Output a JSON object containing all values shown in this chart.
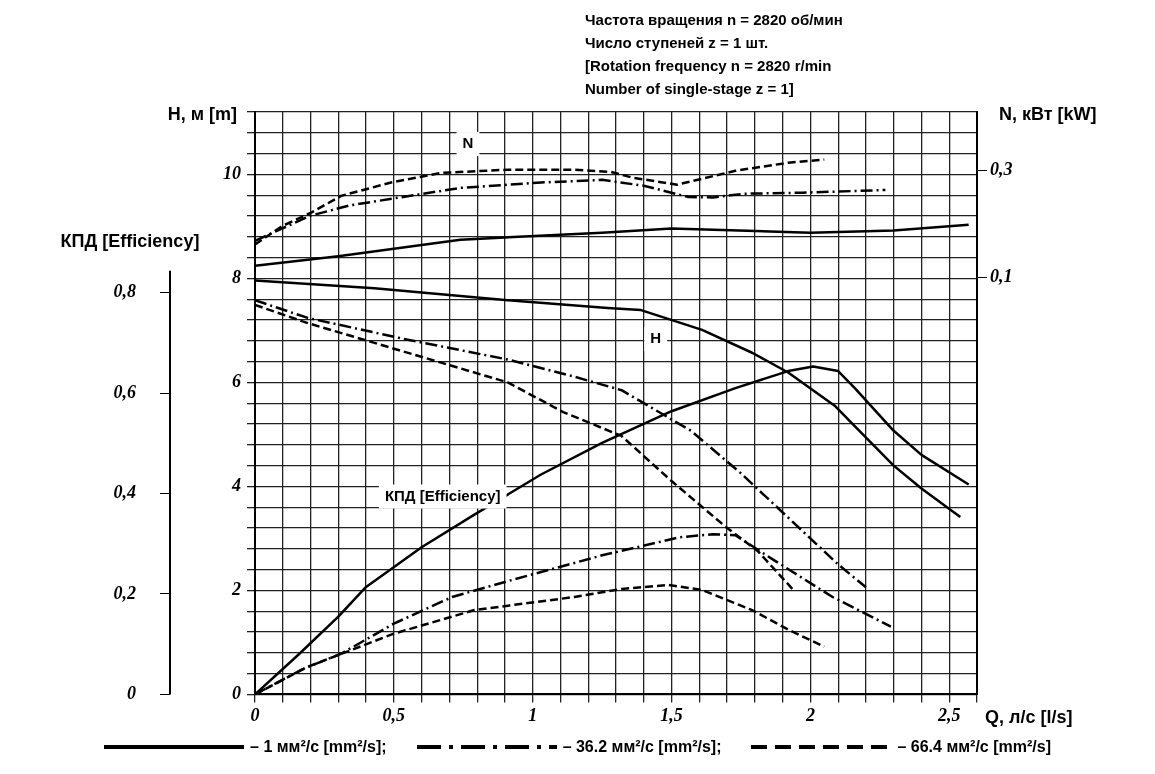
{
  "chart_data": {
    "type": "line",
    "xlabel": "Q, л/с [l/s]",
    "ylabel": "H, м [m]",
    "y2label": "N, кВт [kW]",
    "y3label": "КПД [Efficiency]",
    "xlim": [
      0,
      2.6
    ],
    "xticks": [
      0,
      {
        "value": 0.1,
        "label": null
      },
      {
        "value": 0.2,
        "label": null
      },
      {
        "value": 0.3,
        "label": null
      },
      {
        "value": 0.4,
        "label": null
      },
      {
        "value": 0.5,
        "label": "0,5"
      },
      {
        "value": 0.6,
        "label": null
      },
      {
        "value": 0.7,
        "label": null
      },
      {
        "value": 0.8,
        "label": null
      },
      {
        "value": 0.9,
        "label": null
      },
      1,
      {
        "value": 1.1,
        "label": null
      },
      {
        "value": 1.2,
        "label": null
      },
      {
        "value": 1.3,
        "label": null
      },
      {
        "value": 1.4,
        "label": null
      },
      {
        "value": 1.5,
        "label": "1,5"
      },
      {
        "value": 1.6,
        "label": null
      },
      {
        "value": 1.7,
        "label": null
      },
      {
        "value": 1.8,
        "label": null
      },
      {
        "value": 1.9,
        "label": null
      },
      2,
      {
        "value": 2.1,
        "label": null
      },
      {
        "value": 2.2,
        "label": null
      },
      {
        "value": 2.3,
        "label": null
      },
      {
        "value": 2.4,
        "label": null
      },
      {
        "value": 2.5,
        "label": "2,5"
      },
      {
        "value": 2.6,
        "label": null
      }
    ],
    "ylim": [
      0,
      11.2
    ],
    "yticks": [
      0,
      {
        "value": 0.4,
        "label": null
      },
      {
        "value": 0.8,
        "label": null
      },
      {
        "value": 1.2,
        "label": null
      },
      {
        "value": 1.6,
        "label": null
      },
      2,
      {
        "value": 2.4,
        "label": null
      },
      {
        "value": 2.8,
        "label": null
      },
      {
        "value": 3.2,
        "label": null
      },
      {
        "value": 3.6,
        "label": null
      },
      4,
      {
        "value": 4.4,
        "label": null
      },
      {
        "value": 4.8,
        "label": null
      },
      {
        "value": 5.2,
        "label": null
      },
      {
        "value": 5.6,
        "label": null
      },
      6,
      {
        "value": 6.4,
        "label": null
      },
      {
        "value": 6.8,
        "label": null
      },
      {
        "value": 7.2,
        "label": null
      },
      {
        "value": 7.6,
        "label": null
      },
      8,
      {
        "value": 8.4,
        "label": null
      },
      {
        "value": 8.8,
        "label": null
      },
      {
        "value": 9.2,
        "label": null
      },
      {
        "value": 9.6,
        "label": null
      },
      10,
      {
        "value": 10.4,
        "label": null
      },
      {
        "value": 10.8,
        "label": null
      },
      {
        "value": 11.2,
        "label": null
      }
    ],
    "y2lim": [
      -0.68,
      0.41
    ],
    "y2ticks": [
      {
        "value": 0.1,
        "label": "0,1"
      },
      {
        "value": 0.3,
        "label": "0,3"
      }
    ],
    "y3lim": [
      0,
      1.16
    ],
    "y3ticks": [
      0,
      {
        "value": 0.2,
        "label": "0,2"
      },
      {
        "value": 0.4,
        "label": "0,4"
      },
      {
        "value": 0.6,
        "label": "0,6"
      },
      {
        "value": 0.8,
        "label": "0,8"
      }
    ],
    "grid": true,
    "legend": "bottom",
    "annotations": [
      "Частота вращения n = 2820 об/мин",
      "Число ступеней z = 1 шт.",
      "[Rotation frequency n = 2820 r/min",
      "Number of single-stage z = 1]",
      "N",
      "H",
      "КПД [Efficiency]"
    ],
    "series": [
      {
        "name": "– 1 мм²/с [mm²/s];",
        "color": "#000000",
        "line_style": "solid",
        "axis": "y",
        "x": [
          0,
          0.43,
          0.91,
          1.27,
          1.39,
          1.61,
          1.79,
          1.92,
          2.09,
          2.18,
          2.3,
          2.4,
          2.54
        ],
        "values": [
          7.96,
          7.81,
          7.58,
          7.43,
          7.39,
          7.01,
          6.57,
          6.19,
          5.54,
          5.05,
          4.4,
          3.96,
          3.41
        ]
      },
      {
        "name": "– 36.2 мм²/с [mm²/s];",
        "color": "#000000",
        "line_style": "dashdot",
        "axis": "y",
        "x": [
          0,
          0.19,
          0.55,
          0.91,
          1.15,
          1.32,
          1.57,
          1.75,
          1.93,
          2.1,
          2.2
        ],
        "values": [
          7.58,
          7.24,
          6.82,
          6.44,
          6.11,
          5.85,
          5.07,
          4.25,
          3.35,
          2.5,
          2.06
        ]
      },
      {
        "name": "– 66.4 мм²/с [mm²/s]",
        "color": "#000000",
        "line_style": "dashed",
        "axis": "y",
        "x": [
          0,
          0.19,
          0.43,
          0.67,
          0.91,
          1.11,
          1.32,
          1.49,
          1.7,
          1.81,
          1.94
        ],
        "values": [
          7.49,
          7.14,
          6.76,
          6.38,
          6.0,
          5.43,
          4.97,
          4.15,
          3.2,
          2.76,
          2.0
        ]
      },
      {
        "color": "#000000",
        "line_style": "solid",
        "axis": "y2",
        "x": [
          0,
          0.3,
          0.74,
          1.25,
          1.5,
          2.0,
          2.3,
          2.57
        ],
        "values": [
          0.122,
          0.14,
          0.171,
          0.184,
          0.192,
          0.184,
          0.188,
          0.199
        ]
      },
      {
        "color": "#000000",
        "line_style": "dashdot",
        "axis": "y2",
        "x": [
          0,
          0.2,
          0.34,
          0.52,
          0.74,
          1.03,
          1.25,
          1.4,
          1.56,
          1.65,
          1.76,
          1.97,
          2.27
        ],
        "values": [
          0.169,
          0.216,
          0.235,
          0.25,
          0.268,
          0.278,
          0.283,
          0.272,
          0.251,
          0.25,
          0.257,
          0.259,
          0.264
        ]
      },
      {
        "color": "#000000",
        "line_style": "dashed",
        "axis": "y2",
        "x": [
          0,
          0.1,
          0.2,
          0.31,
          0.49,
          0.67,
          0.91,
          1.15,
          1.28,
          1.36,
          1.52,
          1.73,
          1.92,
          2.05
        ],
        "values": [
          0.162,
          0.197,
          0.221,
          0.253,
          0.278,
          0.296,
          0.302,
          0.302,
          0.298,
          0.287,
          0.274,
          0.3,
          0.315,
          0.321
        ]
      },
      {
        "color": "#000000",
        "line_style": "solid",
        "axis": "y3",
        "x": [
          0,
          0.16,
          0.3,
          0.4,
          0.6,
          0.79,
          1.03,
          1.25,
          1.5,
          1.73,
          1.92,
          2.01,
          2.1,
          2.16,
          2.3,
          2.4,
          2.57
        ],
        "values": [
          0,
          0.081,
          0.155,
          0.214,
          0.293,
          0.358,
          0.438,
          0.501,
          0.564,
          0.61,
          0.644,
          0.653,
          0.644,
          0.61,
          0.525,
          0.477,
          0.418
        ]
      },
      {
        "color": "#000000",
        "line_style": "dashdot",
        "axis": "y3",
        "x": [
          0,
          0.17,
          0.31,
          0.5,
          0.71,
          0.9,
          1.25,
          1.53,
          1.65,
          1.73,
          1.87,
          2.08,
          2.29
        ],
        "values": [
          0,
          0.05,
          0.081,
          0.141,
          0.194,
          0.224,
          0.277,
          0.313,
          0.319,
          0.317,
          0.267,
          0.194,
          0.135
        ]
      },
      {
        "color": "#000000",
        "line_style": "dashed",
        "axis": "y3",
        "x": [
          0,
          0.19,
          0.5,
          0.79,
          1.15,
          1.32,
          1.49,
          1.61,
          1.79,
          1.92,
          2.05
        ],
        "values": [
          0,
          0.055,
          0.121,
          0.168,
          0.194,
          0.21,
          0.218,
          0.208,
          0.168,
          0.129,
          0.095
        ]
      }
    ]
  }
}
